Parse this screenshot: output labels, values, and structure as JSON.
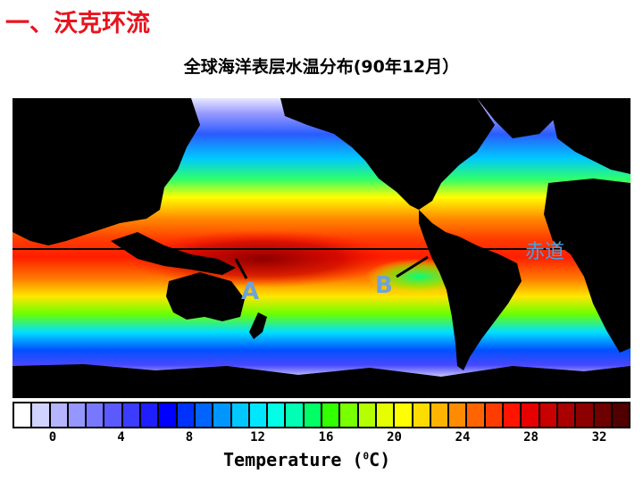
{
  "slide": {
    "title": "一、沃克环流",
    "subtitle": "全球海洋表层水温分布(90年12月）"
  },
  "map": {
    "equator_label": "赤道",
    "point_a_label": "A",
    "point_b_label": "B"
  },
  "legend": {
    "axis_label": "Temperature (",
    "unit_sup": "0",
    "unit_tail": "C)",
    "ticks": [
      "0",
      "4",
      "8",
      "12",
      "16",
      "20",
      "24",
      "28",
      "32"
    ],
    "colors": [
      "#ffffff",
      "#d2d2ff",
      "#b4b4ff",
      "#9696ff",
      "#7878ff",
      "#5a5aff",
      "#3c3cff",
      "#1e1eff",
      "#0000ff",
      "#0032ff",
      "#0064ff",
      "#0096ff",
      "#00c8ff",
      "#00e6ff",
      "#00ffe6",
      "#00ffb4",
      "#00ff64",
      "#32ff00",
      "#78ff00",
      "#b4ff00",
      "#e6ff00",
      "#ffff00",
      "#ffdc00",
      "#ffb400",
      "#ff8c00",
      "#ff6400",
      "#ff3c00",
      "#ff1400",
      "#e60000",
      "#c80000",
      "#aa0000",
      "#8c0000",
      "#6e0000",
      "#500000"
    ]
  }
}
